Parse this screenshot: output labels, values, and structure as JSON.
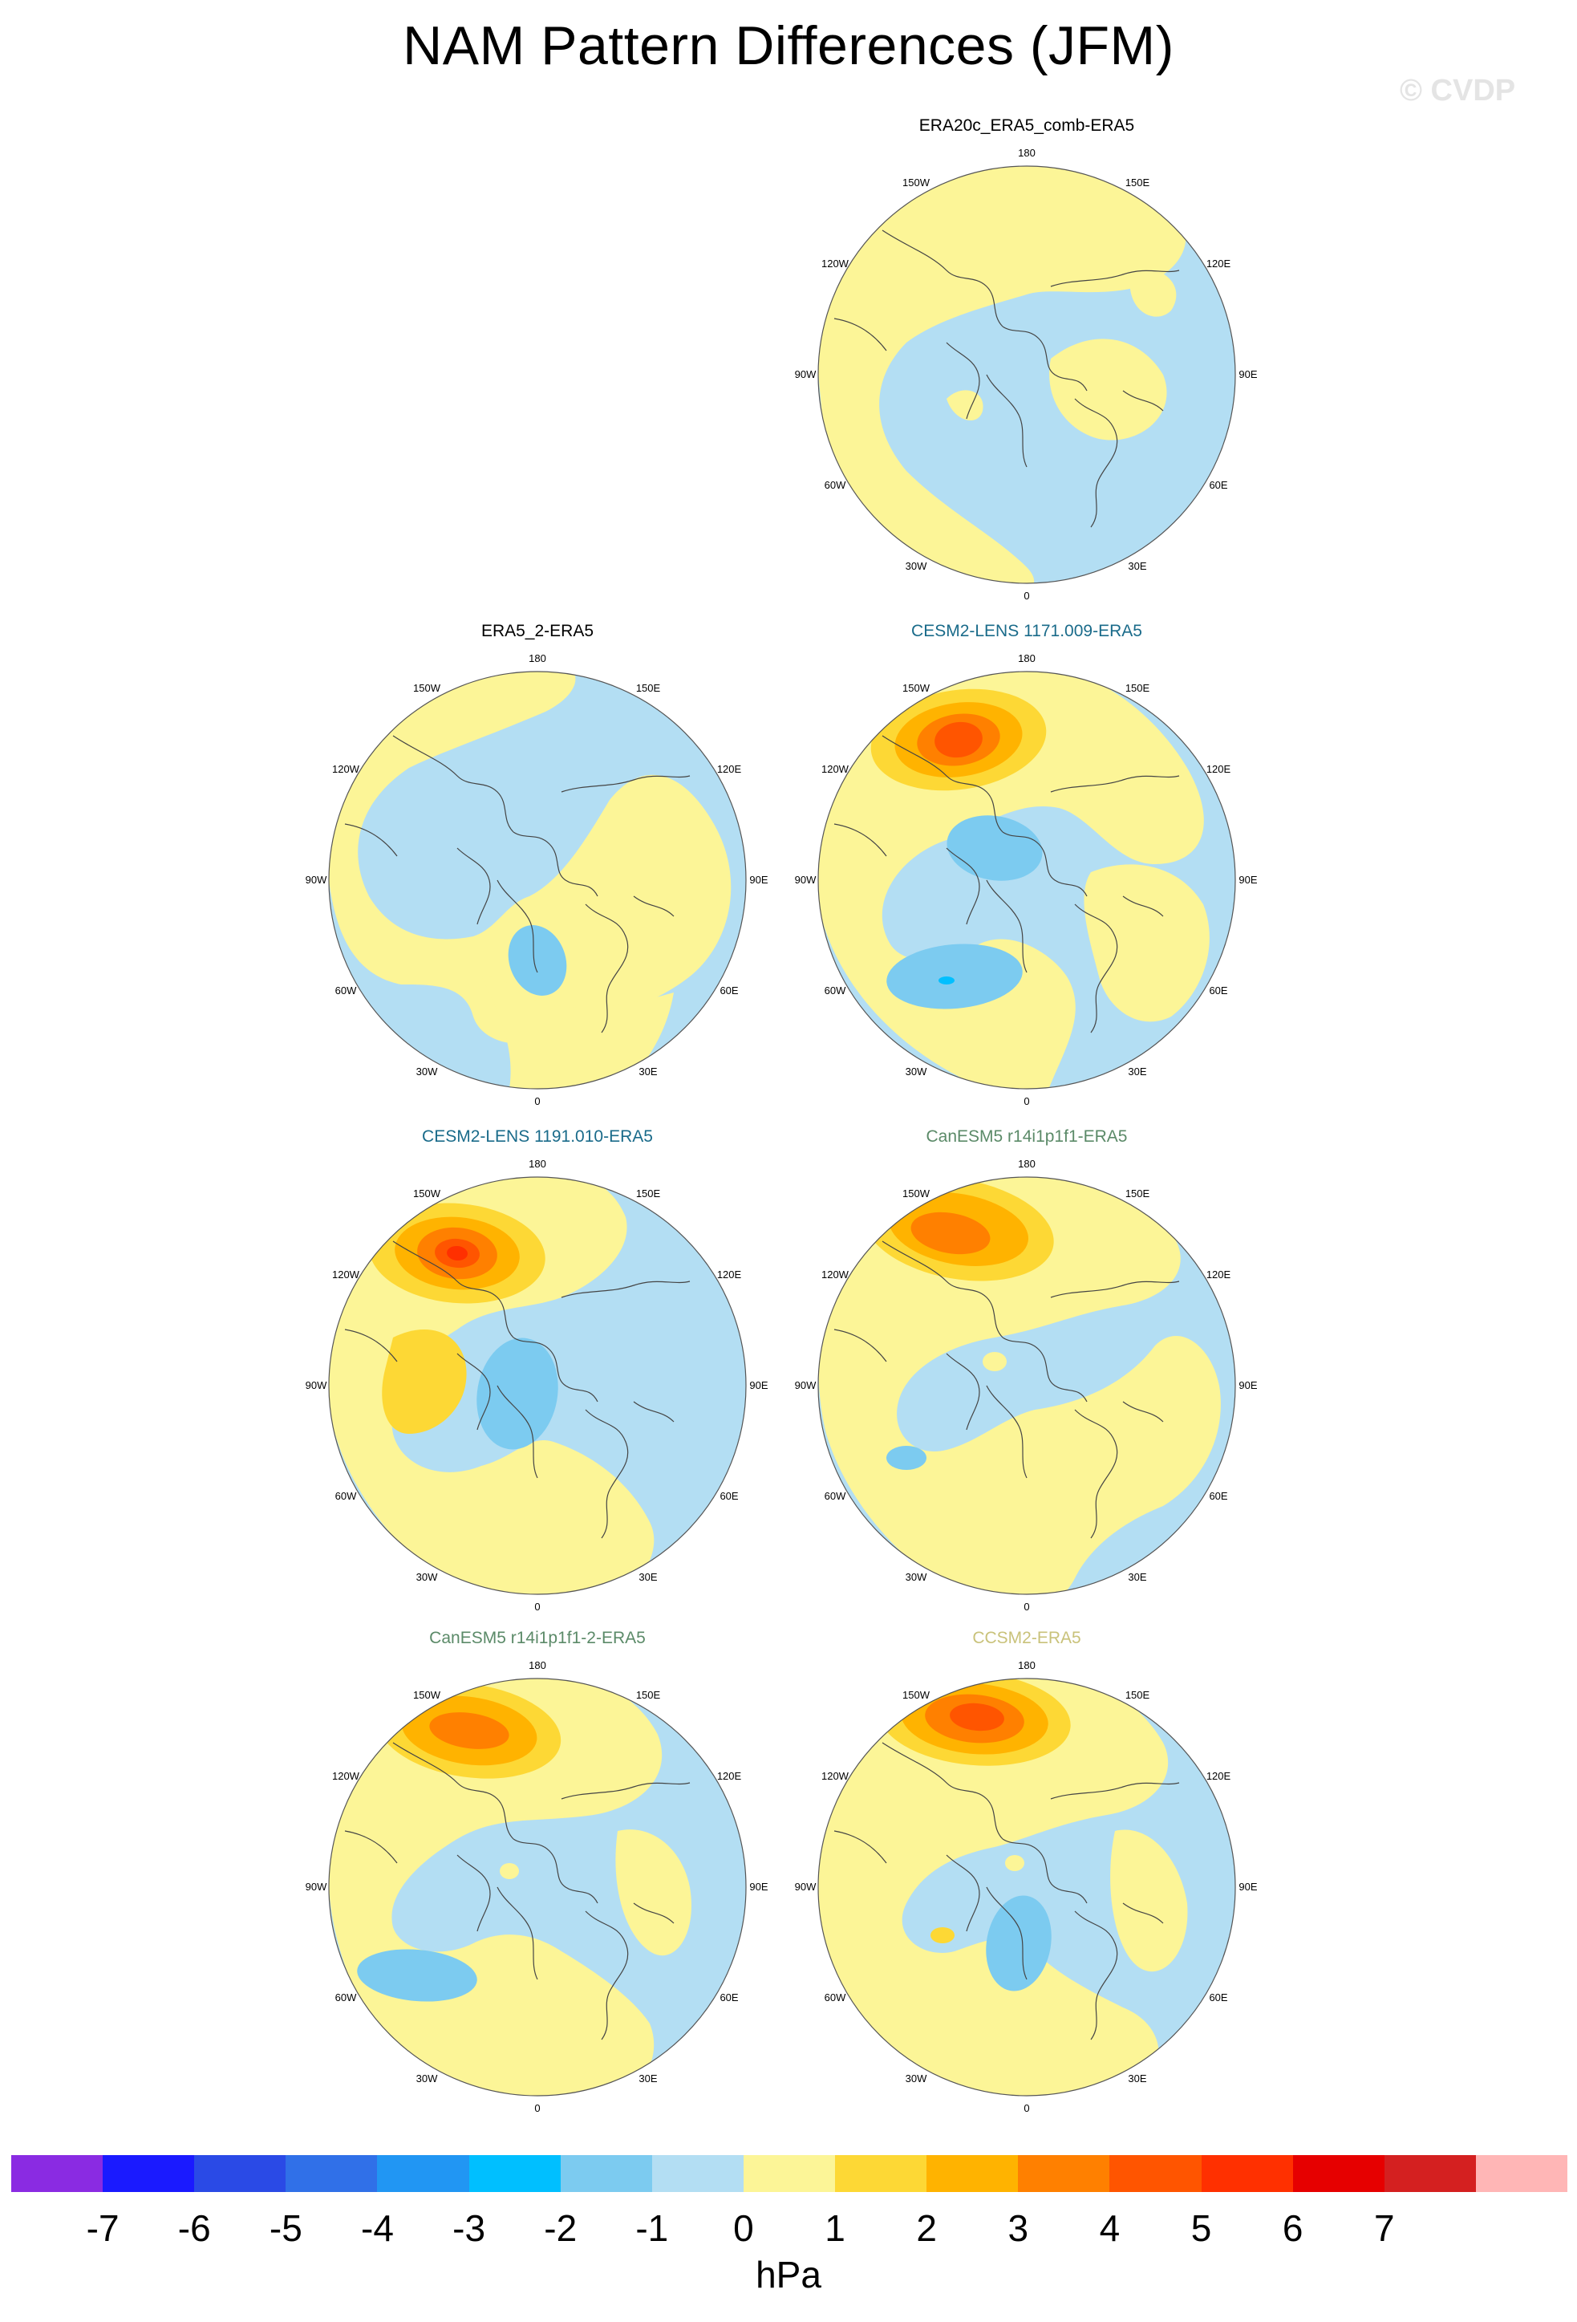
{
  "title": "NAM Pattern Differences (JFM)",
  "watermark": "© CVDP",
  "colors": {
    "pale_blue": "#b3def3",
    "pale_yellow": "#fcf597",
    "land_line": "#444444"
  },
  "lon_labels": [
    "180",
    "150E",
    "120E",
    "90E",
    "60E",
    "30E",
    "0",
    "30W",
    "60W",
    "90W",
    "120W",
    "150W"
  ],
  "panels": [
    {
      "title": "ERA20c_ERA5_comb-ERA5",
      "title_color": "#000000",
      "pattern": "era20c"
    },
    {
      "title": "ERA5_2-ERA5",
      "title_color": "#000000",
      "pattern": "era5_2"
    },
    {
      "title": "CESM2-LENS 1171.009-ERA5",
      "title_color": "#1a6b8a",
      "pattern": "cesm1171"
    },
    {
      "title": "CESM2-LENS 1191.010-ERA5",
      "title_color": "#1a6b8a",
      "pattern": "cesm1191"
    },
    {
      "title": "CanESM5 r14i1p1f1-ERA5",
      "title_color": "#5b8a68",
      "pattern": "canesm1"
    },
    {
      "title": "CanESM5 r14i1p1f1-2-ERA5",
      "title_color": "#5b8a68",
      "pattern": "canesm2"
    },
    {
      "title": "CCSM2-ERA5",
      "title_color": "#c9c27a",
      "pattern": "ccsm2"
    }
  ],
  "colorbar": {
    "colors": [
      "#8a2be2",
      "#1a1aff",
      "#2a4ae6",
      "#3070e8",
      "#2196f3",
      "#00bfff",
      "#7ccbf0",
      "#b3def3",
      "#fcf597",
      "#fdd835",
      "#ffb300",
      "#ff8000",
      "#ff5500",
      "#ff3000",
      "#e60000",
      "#d42020",
      "#ffb6b6"
    ],
    "tick_labels": [
      "-7",
      "-6",
      "-5",
      "-4",
      "-3",
      "-2",
      "-1",
      "0",
      "1",
      "2",
      "3",
      "4",
      "5",
      "6",
      "7"
    ],
    "units": "hPa"
  }
}
